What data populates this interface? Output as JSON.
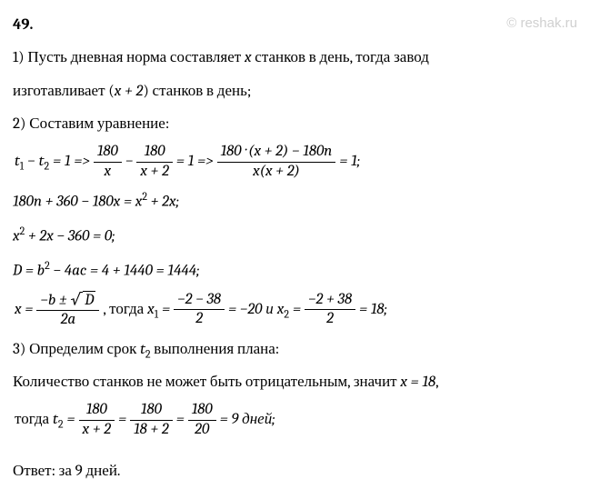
{
  "problem_number": "49.",
  "watermark": "© reshak.ru",
  "step1": {
    "prefix": "1) Пусть дневная норма составляет ",
    "var1": "x",
    "mid1": " станков в день, тогда завод",
    "line2_prefix": "изготавливает (",
    "expr": "x + 2",
    "line2_suffix": ") станков в день;"
  },
  "step2": {
    "title": "2) Составим уравнение:",
    "eq1_lhs_t1": "t",
    "eq1_lhs_sub1": "1",
    "eq1_minus": " − ",
    "eq1_lhs_t2": "t",
    "eq1_lhs_sub2": "2",
    "eq1_eq1": " = 1  =>  ",
    "frac1_num": "180",
    "frac1_den": "x",
    "eq1_minus2": " − ",
    "frac2_num": "180",
    "frac2_den": "x + 2",
    "eq1_eq2": " = 1   =>   ",
    "frac3_num": "180 · (x + 2) − 180n",
    "frac3_den": "x(x + 2)",
    "eq1_eq3": " = 1;",
    "eq2": "180n + 360 − 180x = x",
    "eq2_sup": "2",
    "eq2_tail": " + 2x;",
    "eq3_a": "x",
    "eq3_sup": "2",
    "eq3_b": " + 2x − 360 = 0;",
    "eq4_a": "D = b",
    "eq4_sup": "2",
    "eq4_b": " − 4ac = 4 + 1440 = 1444;",
    "eq5_x": "x = ",
    "frac4_num_a": "−b ± ",
    "frac4_num_sqrt": "D",
    "frac4_den": "2a",
    "eq5_mid": " , тогда ",
    "eq5_x1": "x",
    "eq5_x1sub": "1",
    "eq5_eq": " = ",
    "frac5_num": "−2 − 38",
    "frac5_den": "2",
    "eq5_val1": " = −20  и  ",
    "eq5_x2": "x",
    "eq5_x2sub": "2",
    "frac6_num": "−2 + 38",
    "frac6_den": "2",
    "eq5_val2": " = 18;"
  },
  "step3": {
    "title_a": "3) Определим срок ",
    "title_t": "t",
    "title_sub": "2",
    "title_b": " выполнения плана:",
    "text_a": "Количество станков не может быть отрицательным, значит ",
    "text_x": "x = 18",
    "text_comma": ",",
    "text2_a": "тогда  ",
    "text2_t": "t",
    "text2_sub": "2",
    "text2_eq": " = ",
    "frac7_num": "180",
    "frac7_den": "x + 2",
    "text2_eq2": " = ",
    "frac8_num": "180",
    "frac8_den": "18 + 2",
    "frac9_num": "180",
    "frac9_den": "20",
    "text2_val": " = 9 дней;"
  },
  "answer": {
    "label": "Ответ:  за 9 дней."
  }
}
